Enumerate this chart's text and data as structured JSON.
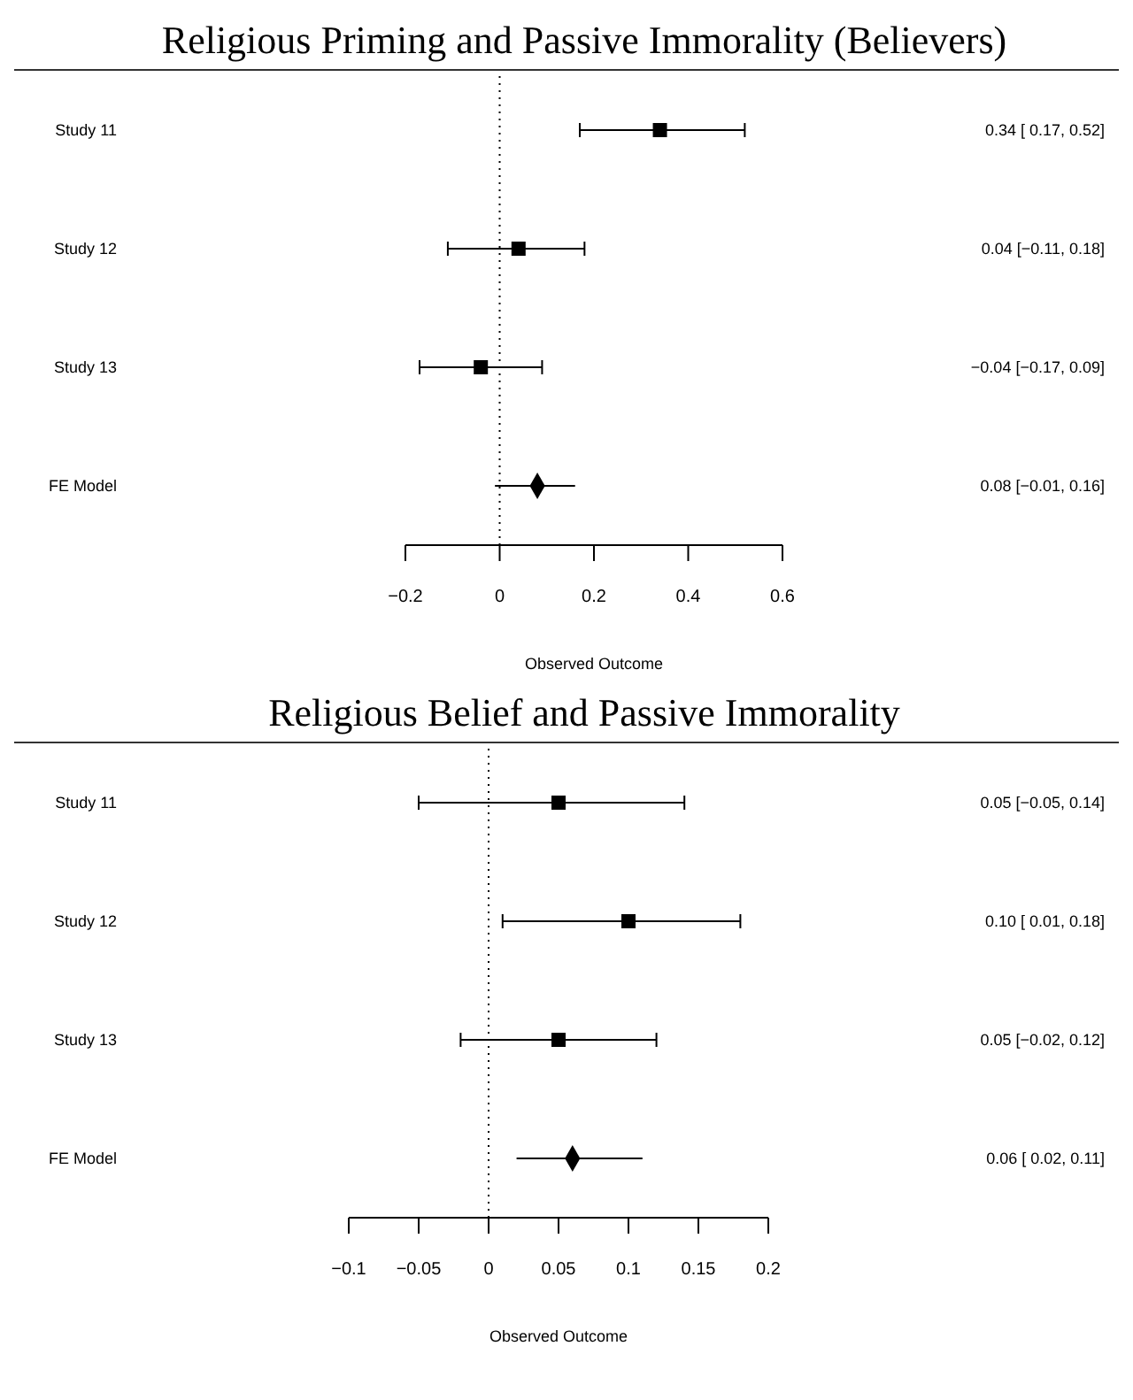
{
  "chart_data": [
    {
      "type": "scatter",
      "orientation": "horizontal",
      "title": "Religious Priming and Passive Immorality (Believers)",
      "xlabel": "Observed Outcome",
      "y_categories": [
        "Study 11",
        "Study 12",
        "Study 13",
        "FE Model"
      ],
      "xlim": [
        -0.2,
        0.6
      ],
      "xticks": [
        {
          "value": -0.2,
          "label": "−0.2"
        },
        0,
        0.2,
        0.4,
        0.6
      ],
      "ref_lines": [
        {
          "axis": "x",
          "value": 0,
          "line_style": "dotted"
        }
      ],
      "grid": false,
      "legend": false,
      "series": [
        {
          "color": "#000000",
          "marker": "square",
          "values": [
            0.34,
            0.04,
            -0.04,
            null
          ],
          "errors": [
            [
              0.17,
              0.52
            ],
            [
              -0.11,
              0.18
            ],
            [
              -0.17,
              0.09
            ],
            null
          ]
        },
        {
          "color": "#000000",
          "marker": "diamond",
          "values": [
            null,
            null,
            null,
            0.08
          ],
          "errors": [
            null,
            null,
            null,
            [
              -0.01,
              0.16
            ]
          ]
        }
      ],
      "value_labels": [
        "0.34 [ 0.17, 0.52]",
        "0.04 [−0.11, 0.18]",
        "−0.04 [−0.17, 0.09]",
        "0.08 [−0.01, 0.16]"
      ]
    },
    {
      "type": "scatter",
      "orientation": "horizontal",
      "title": "Religious Belief and Passive Immorality",
      "xlabel": "Observed Outcome",
      "y_categories": [
        "Study 11",
        "Study 12",
        "Study 13",
        "FE Model"
      ],
      "xlim": [
        -0.1,
        0.2
      ],
      "xticks": [
        {
          "value": -0.1,
          "label": "−0.1"
        },
        {
          "value": -0.05,
          "label": "−0.05"
        },
        0,
        0.05,
        0.1,
        0.15,
        0.2
      ],
      "ref_lines": [
        {
          "axis": "x",
          "value": 0,
          "line_style": "dotted"
        }
      ],
      "grid": false,
      "legend": false,
      "series": [
        {
          "color": "#000000",
          "marker": "square",
          "values": [
            0.05,
            0.1,
            0.05,
            null
          ],
          "errors": [
            [
              -0.05,
              0.14
            ],
            [
              0.01,
              0.18
            ],
            [
              -0.02,
              0.12
            ],
            null
          ]
        },
        {
          "color": "#000000",
          "marker": "diamond",
          "values": [
            null,
            null,
            null,
            0.06
          ],
          "errors": [
            null,
            null,
            null,
            [
              0.02,
              0.11
            ]
          ]
        }
      ],
      "value_labels": [
        "0.05 [−0.05, 0.14]",
        "0.10 [ 0.01, 0.18]",
        "0.05 [−0.02, 0.12]",
        "0.06 [ 0.02, 0.11]"
      ]
    }
  ]
}
